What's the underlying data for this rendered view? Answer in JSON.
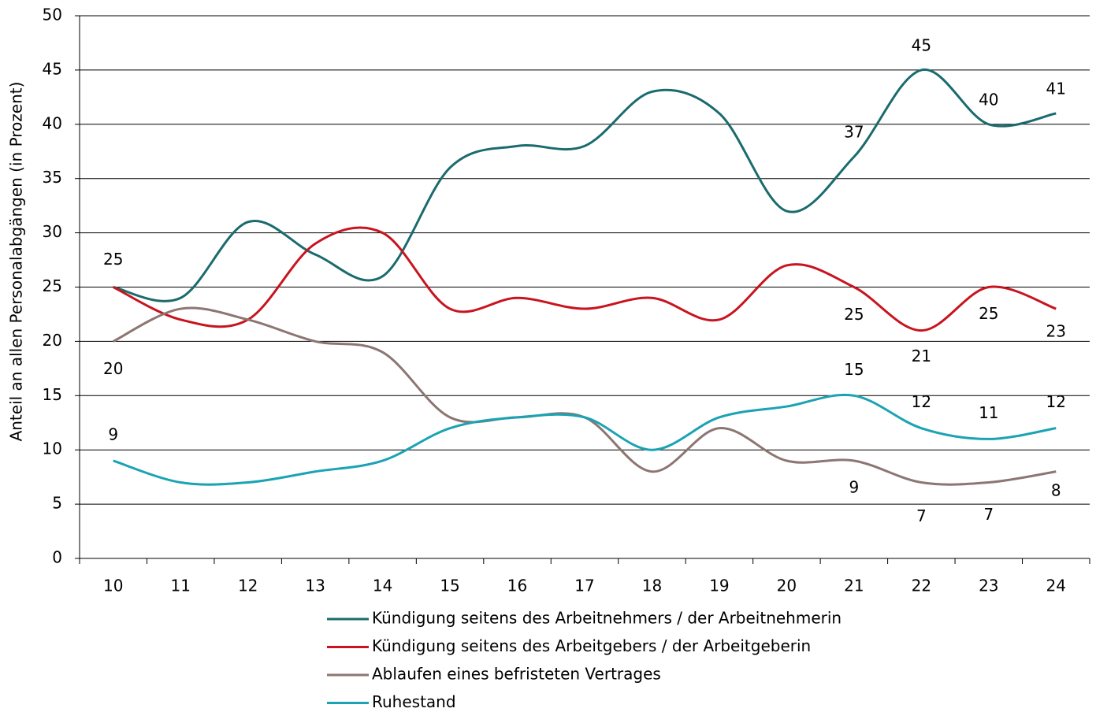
{
  "chart_data": {
    "type": "line",
    "y_label": "Anteil an allen Personalabgängen (in Prozent)",
    "categories": [
      "10",
      "11",
      "12",
      "13",
      "14",
      "15",
      "16",
      "17",
      "18",
      "19",
      "20",
      "21",
      "22",
      "23",
      "24"
    ],
    "series": [
      {
        "name": "Kündigung seitens des Arbeitnehmers / der Arbeitnehmerin",
        "color": "#1b6b6e",
        "values": [
          25,
          24,
          31,
          28,
          26,
          36,
          38,
          38,
          43,
          41,
          32,
          37,
          45,
          40,
          41
        ],
        "value_labels": [
          null,
          null,
          null,
          null,
          null,
          null,
          null,
          null,
          null,
          null,
          null,
          "37",
          "45",
          "40",
          "41"
        ]
      },
      {
        "name": "Kündigung seitens des Arbeitgebers / der Arbeitgeberin",
        "color": "#c8141e",
        "values": [
          25,
          22,
          22,
          29,
          30,
          23,
          24,
          23,
          24,
          22,
          27,
          25,
          21,
          25,
          23
        ],
        "value_labels": [
          "25",
          null,
          null,
          null,
          null,
          null,
          null,
          null,
          null,
          null,
          null,
          "25",
          "21",
          "25",
          "23"
        ]
      },
      {
        "name": "Ablaufen eines befristeten Vertrages",
        "color": "#8c7672",
        "values": [
          20,
          23,
          22,
          20,
          19,
          13,
          13,
          13,
          8,
          12,
          9,
          9,
          7,
          7,
          8
        ],
        "value_labels": [
          "20",
          null,
          null,
          null,
          null,
          null,
          null,
          null,
          null,
          null,
          null,
          "9",
          "7",
          "7",
          "8"
        ]
      },
      {
        "name": "Ruhestand",
        "color": "#1aa3b3",
        "values": [
          9,
          7,
          7,
          8,
          9,
          12,
          13,
          13,
          10,
          13,
          14,
          15,
          12,
          11,
          12
        ],
        "value_labels": [
          "9",
          null,
          null,
          null,
          null,
          null,
          null,
          null,
          null,
          null,
          null,
          "15",
          "12",
          "11",
          "12"
        ]
      }
    ],
    "ylim": [
      0,
      50
    ],
    "yticks": [
      0,
      5,
      10,
      15,
      20,
      25,
      30,
      35,
      40,
      45,
      50
    ],
    "grid": true
  }
}
